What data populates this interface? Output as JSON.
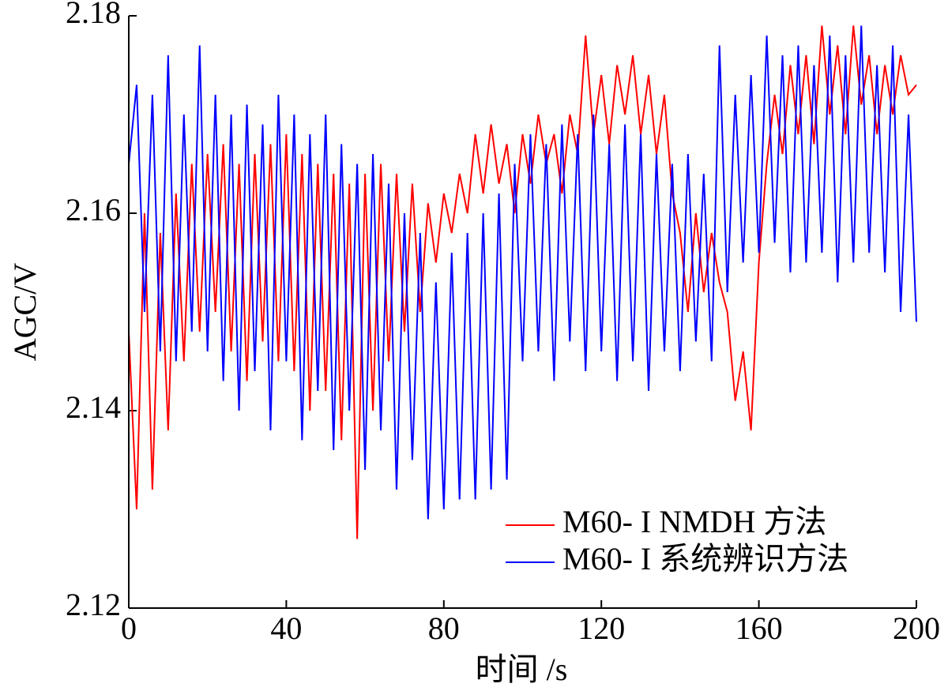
{
  "chart_data": {
    "type": "line",
    "x_label": "时间 /s",
    "y_label": "AGC/V",
    "x": [
      0,
      2,
      4,
      6,
      8,
      10,
      12,
      14,
      16,
      18,
      20,
      22,
      24,
      26,
      28,
      30,
      32,
      34,
      36,
      38,
      40,
      42,
      44,
      46,
      48,
      50,
      52,
      54,
      56,
      58,
      60,
      62,
      64,
      66,
      68,
      70,
      72,
      74,
      76,
      78,
      80,
      82,
      84,
      86,
      88,
      90,
      92,
      94,
      96,
      98,
      100,
      102,
      104,
      106,
      108,
      110,
      112,
      114,
      116,
      118,
      120,
      122,
      124,
      126,
      128,
      130,
      132,
      134,
      136,
      138,
      140,
      142,
      144,
      146,
      148,
      150,
      152,
      154,
      156,
      158,
      160,
      162,
      164,
      166,
      168,
      170,
      172,
      174,
      176,
      178,
      180,
      182,
      184,
      186,
      188,
      190,
      192,
      194,
      196,
      198,
      200
    ],
    "series": [
      {
        "name": "M60- I NMDH 方法",
        "color": "#ff0000",
        "values": [
          2.148,
          2.13,
          2.16,
          2.132,
          2.158,
          2.138,
          2.162,
          2.145,
          2.165,
          2.148,
          2.166,
          2.15,
          2.167,
          2.146,
          2.165,
          2.143,
          2.166,
          2.147,
          2.167,
          2.145,
          2.168,
          2.144,
          2.166,
          2.14,
          2.165,
          2.142,
          2.164,
          2.137,
          2.163,
          2.127,
          2.164,
          2.14,
          2.165,
          2.145,
          2.164,
          2.148,
          2.163,
          2.15,
          2.161,
          2.155,
          2.162,
          2.158,
          2.164,
          2.16,
          2.168,
          2.162,
          2.169,
          2.163,
          2.167,
          2.16,
          2.168,
          2.163,
          2.17,
          2.165,
          2.168,
          2.162,
          2.17,
          2.166,
          2.178,
          2.168,
          2.174,
          2.167,
          2.175,
          2.17,
          2.176,
          2.168,
          2.174,
          2.166,
          2.172,
          2.162,
          2.158,
          2.15,
          2.16,
          2.152,
          2.158,
          2.153,
          2.15,
          2.141,
          2.146,
          2.138,
          2.155,
          2.165,
          2.172,
          2.166,
          2.175,
          2.168,
          2.176,
          2.167,
          2.179,
          2.17,
          2.177,
          2.168,
          2.179,
          2.171,
          2.176,
          2.168,
          2.175,
          2.17,
          2.176,
          2.172,
          2.173
        ]
      },
      {
        "name": "M60- I 系统辨识方法",
        "color": "#0000ff",
        "values": [
          2.165,
          2.173,
          2.15,
          2.172,
          2.146,
          2.176,
          2.145,
          2.17,
          2.148,
          2.177,
          2.146,
          2.172,
          2.143,
          2.17,
          2.14,
          2.171,
          2.144,
          2.169,
          2.138,
          2.172,
          2.145,
          2.17,
          2.137,
          2.168,
          2.142,
          2.17,
          2.136,
          2.167,
          2.14,
          2.165,
          2.134,
          2.166,
          2.138,
          2.163,
          2.132,
          2.16,
          2.135,
          2.158,
          2.129,
          2.153,
          2.13,
          2.156,
          2.131,
          2.158,
          2.131,
          2.16,
          2.132,
          2.162,
          2.133,
          2.165,
          2.145,
          2.168,
          2.146,
          2.167,
          2.143,
          2.169,
          2.147,
          2.168,
          2.144,
          2.17,
          2.146,
          2.167,
          2.143,
          2.169,
          2.145,
          2.168,
          2.142,
          2.166,
          2.146,
          2.165,
          2.144,
          2.166,
          2.147,
          2.164,
          2.145,
          2.177,
          2.152,
          2.172,
          2.155,
          2.174,
          2.156,
          2.178,
          2.157,
          2.176,
          2.154,
          2.177,
          2.155,
          2.175,
          2.156,
          2.178,
          2.153,
          2.176,
          2.155,
          2.179,
          2.156,
          2.175,
          2.154,
          2.177,
          2.15,
          2.17,
          2.149
        ]
      }
    ],
    "xlim": [
      0,
      200
    ],
    "xticks": [
      0,
      40,
      80,
      120,
      160,
      200
    ],
    "ylim": [
      2.12,
      2.18
    ],
    "yticks": [
      2.12,
      2.14,
      2.16,
      2.18
    ],
    "grid": false,
    "legend": "lower right"
  }
}
